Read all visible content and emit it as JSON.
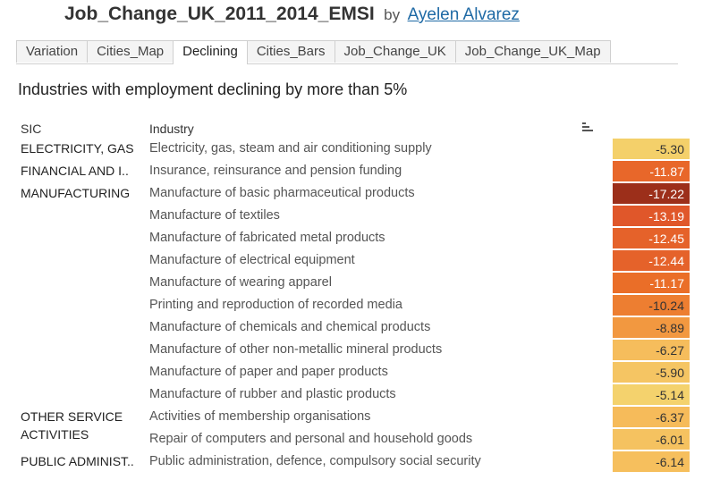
{
  "header": {
    "title": "Job_Change_UK_2011_2014_EMSI",
    "by": "by",
    "author": "Ayelen Alvarez"
  },
  "tabs": [
    {
      "label": "Variation",
      "active": false
    },
    {
      "label": "Cities_Map",
      "active": false
    },
    {
      "label": "Declining",
      "active": true
    },
    {
      "label": "Cities_Bars",
      "active": false
    },
    {
      "label": "Job_Change_UK",
      "active": false
    },
    {
      "label": "Job_Change_UK_Map",
      "active": false
    }
  ],
  "heading": "Industries with employment declining by more than 5%",
  "columns": {
    "sic": "SIC",
    "industry": "Industry"
  },
  "groups": [
    {
      "sic_lines": [
        "ELECTRICITY, GAS"
      ],
      "rows": [
        {
          "industry": "Electricity, gas, steam and air conditioning supply",
          "value": "-5.30",
          "color": "#f4d06a",
          "text_color": "#333333"
        }
      ]
    },
    {
      "sic_lines": [
        "FINANCIAL AND I.."
      ],
      "rows": [
        {
          "industry": "Insurance, reinsurance and pension funding",
          "value": "-11.87",
          "color": "#e8672a",
          "text_color": "#ffffff"
        }
      ]
    },
    {
      "sic_lines": [
        "MANUFACTURING"
      ],
      "rows": [
        {
          "industry": "Manufacture of basic pharmaceutical products",
          "value": "-17.22",
          "color": "#9c2f1a",
          "text_color": "#ffffff"
        },
        {
          "industry": "Manufacture of textiles",
          "value": "-13.19",
          "color": "#e0572a",
          "text_color": "#ffffff"
        },
        {
          "industry": "Manufacture of fabricated metal products",
          "value": "-12.45",
          "color": "#e5622a",
          "text_color": "#ffffff"
        },
        {
          "industry": "Manufacture of electrical equipment",
          "value": "-12.44",
          "color": "#e5622a",
          "text_color": "#ffffff"
        },
        {
          "industry": "Manufacture of wearing apparel",
          "value": "-11.17",
          "color": "#ea6e28",
          "text_color": "#ffffff"
        },
        {
          "industry": "Printing and reproduction of recorded media",
          "value": "-10.24",
          "color": "#ed7e31",
          "text_color": "#333333"
        },
        {
          "industry": "Manufacture of chemicals and chemical products",
          "value": "-8.89",
          "color": "#f29840",
          "text_color": "#333333"
        },
        {
          "industry": "Manufacture of other non-metallic mineral products",
          "value": "-6.27",
          "color": "#f6bd5c",
          "text_color": "#333333"
        },
        {
          "industry": "Manufacture of paper and paper products",
          "value": "-5.90",
          "color": "#f5c563",
          "text_color": "#333333"
        },
        {
          "industry": "Manufacture of rubber and plastic products",
          "value": "-5.14",
          "color": "#f4d26d",
          "text_color": "#333333"
        }
      ]
    },
    {
      "sic_lines": [
        "OTHER SERVICE",
        "ACTIVITIES"
      ],
      "rows": [
        {
          "industry": "Activities of membership organisations",
          "value": "-6.37",
          "color": "#f6bb5a",
          "text_color": "#333333"
        },
        {
          "industry": "Repair of computers and personal and household goods",
          "value": "-6.01",
          "color": "#f5c260",
          "text_color": "#333333"
        }
      ]
    },
    {
      "sic_lines": [
        "PUBLIC ADMINIST.."
      ],
      "rows": [
        {
          "industry": "Public administration, defence, compulsory social security",
          "value": "-6.14",
          "color": "#f6bf5d",
          "text_color": "#333333"
        }
      ]
    }
  ]
}
